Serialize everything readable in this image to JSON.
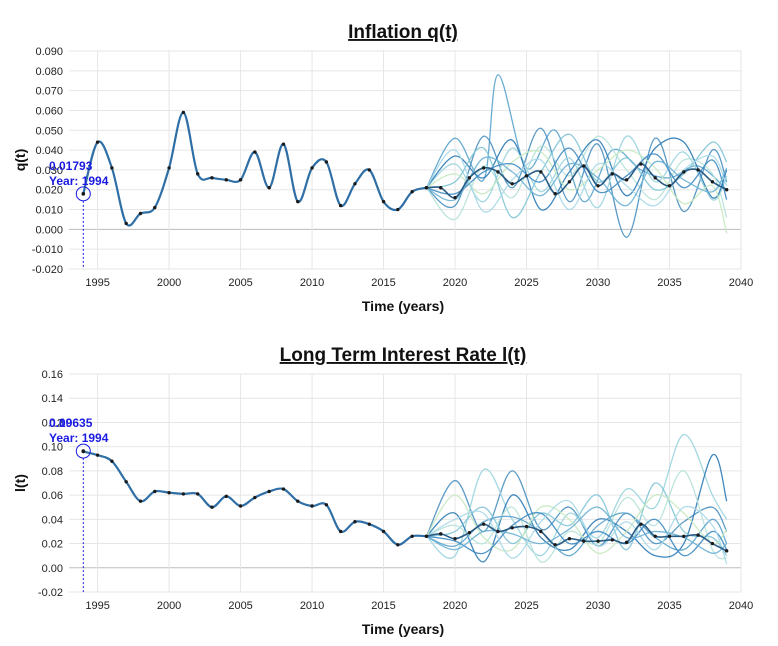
{
  "chart_data": [
    {
      "type": "line",
      "title": "Inflation q(t)",
      "xlabel": "Time (years)",
      "ylabel": "q(t)",
      "xlim": [
        1993,
        2040
      ],
      "ylim": [
        -0.02,
        0.09
      ],
      "grid": true,
      "x_ticks": [
        "1995",
        "2000",
        "2005",
        "2010",
        "2015",
        "2020",
        "2025",
        "2030",
        "2035",
        "2040"
      ],
      "y_ticks": [
        "0.090",
        "0.080",
        "0.070",
        "0.060",
        "0.050",
        "0.040",
        "0.030",
        "0.020",
        "0.010",
        "0.000",
        "-0.010",
        "-0.020"
      ],
      "annotation": {
        "value_label": "0.01793",
        "year_label": "Year: 1994",
        "x": 1994,
        "y": 0.01793
      },
      "history": {
        "x": [
          1994,
          1995,
          1996,
          1997,
          1998,
          1999,
          2000,
          2001,
          2002,
          2003,
          2004,
          2005,
          2006,
          2007,
          2008,
          2009,
          2010,
          2011,
          2012,
          2013,
          2014,
          2015,
          2016,
          2017,
          2018
        ],
        "y": [
          0.018,
          0.044,
          0.031,
          0.003,
          0.008,
          0.011,
          0.031,
          0.059,
          0.028,
          0.026,
          0.025,
          0.025,
          0.039,
          0.021,
          0.043,
          0.014,
          0.031,
          0.034,
          0.012,
          0.023,
          0.03,
          0.014,
          0.01,
          0.019,
          0.021
        ]
      },
      "forecast_mean": {
        "x": [
          2018,
          2019,
          2020,
          2021,
          2022,
          2023,
          2024,
          2025,
          2026,
          2027,
          2028,
          2029,
          2030,
          2031,
          2032,
          2033,
          2034,
          2035,
          2036,
          2037,
          2038,
          2039
        ],
        "y": [
          0.021,
          0.021,
          0.016,
          0.026,
          0.031,
          0.029,
          0.023,
          0.027,
          0.029,
          0.018,
          0.024,
          0.032,
          0.022,
          0.028,
          0.025,
          0.033,
          0.026,
          0.022,
          0.029,
          0.03,
          0.024,
          0.02
        ]
      },
      "scenarios": [
        {
          "x": [
            2018,
            2020,
            2022,
            2023,
            2025,
            2027,
            2029,
            2031,
            2033,
            2035,
            2037,
            2039
          ],
          "y": [
            0.021,
            0.046,
            0.025,
            0.078,
            0.031,
            0.05,
            0.014,
            0.04,
            0.03,
            0.026,
            0.032,
            0.02
          ],
          "color": "#5aa3cc"
        },
        {
          "x": [
            2018,
            2020,
            2022,
            2024,
            2026,
            2028,
            2030,
            2032,
            2034,
            2036,
            2038,
            2039
          ],
          "y": [
            0.021,
            0.012,
            0.047,
            0.021,
            0.051,
            0.014,
            0.043,
            -0.004,
            0.046,
            0.009,
            0.04,
            0.024
          ],
          "color": "#4a90c0"
        },
        {
          "x": [
            2018,
            2020,
            2022,
            2024,
            2026,
            2028,
            2030,
            2032,
            2034,
            2036,
            2038,
            2039
          ],
          "y": [
            0.021,
            0.033,
            0.014,
            0.041,
            0.019,
            0.036,
            0.011,
            0.047,
            0.024,
            0.039,
            0.015,
            0.027
          ],
          "color": "#9ad4de"
        },
        {
          "x": [
            2018,
            2020,
            2022,
            2024,
            2026,
            2028,
            2030,
            2032,
            2034,
            2036,
            2038,
            2039
          ],
          "y": [
            0.021,
            0.005,
            0.032,
            0.016,
            0.042,
            0.027,
            0.047,
            0.03,
            0.015,
            0.035,
            0.028,
            0.006
          ],
          "color": "#b6e2d9"
        },
        {
          "x": [
            2018,
            2020,
            2022,
            2024,
            2026,
            2028,
            2030,
            2032,
            2034,
            2036,
            2038,
            2039
          ],
          "y": [
            0.021,
            0.037,
            0.026,
            0.045,
            0.01,
            0.029,
            0.045,
            0.017,
            0.041,
            0.044,
            0.016,
            0.03
          ],
          "color": "#2c7bb6"
        },
        {
          "x": [
            2018,
            2020,
            2022,
            2024,
            2026,
            2028,
            2030,
            2032,
            2034,
            2036,
            2038,
            2039
          ],
          "y": [
            0.021,
            0.024,
            0.041,
            0.006,
            0.029,
            0.048,
            0.024,
            0.036,
            0.02,
            0.028,
            0.044,
            0.034
          ],
          "color": "#7fc4d6"
        },
        {
          "x": [
            2018,
            2020,
            2022,
            2024,
            2026,
            2028,
            2030,
            2032,
            2034,
            2036,
            2038,
            2039
          ],
          "y": [
            0.021,
            0.028,
            0.018,
            0.034,
            0.039,
            0.02,
            0.03,
            0.04,
            0.031,
            0.013,
            0.022,
            -0.002
          ],
          "color": "#c7e9c0"
        },
        {
          "x": [
            2018,
            2020,
            2022,
            2024,
            2026,
            2028,
            2030,
            2032,
            2034,
            2036,
            2038,
            2039
          ],
          "y": [
            0.021,
            0.018,
            0.029,
            0.033,
            0.024,
            0.041,
            0.019,
            0.027,
            0.038,
            0.021,
            0.035,
            0.015
          ],
          "color": "#3d8ac2"
        },
        {
          "x": [
            2018,
            2020,
            2022,
            2024,
            2026,
            2028,
            2030,
            2032,
            2034,
            2036,
            2038,
            2039
          ],
          "y": [
            0.021,
            0.04,
            0.009,
            0.025,
            0.035,
            0.01,
            0.033,
            0.022,
            0.012,
            0.03,
            0.037,
            0.022
          ],
          "color": "#a8d8e8"
        },
        {
          "x": [
            2018,
            2020,
            2022,
            2024,
            2026,
            2028,
            2030,
            2032,
            2034,
            2036,
            2038,
            2039
          ],
          "y": [
            0.021,
            0.015,
            0.036,
            0.029,
            0.017,
            0.033,
            0.026,
            0.012,
            0.034,
            0.025,
            0.019,
            0.031
          ],
          "color": "#6ab0d4"
        }
      ]
    },
    {
      "type": "line",
      "title": "Long Term Interest Rate l(t)",
      "xlabel": "Time (years)",
      "ylabel": "l(t)",
      "xlim": [
        1993,
        2040
      ],
      "ylim": [
        -0.02,
        0.16
      ],
      "grid": true,
      "x_ticks": [
        "1995",
        "2000",
        "2005",
        "2010",
        "2015",
        "2020",
        "2025",
        "2030",
        "2035",
        "2040"
      ],
      "y_ticks": [
        "0.16",
        "0.14",
        "0.12",
        "0.10",
        "0.08",
        "0.06",
        "0.04",
        "0.02",
        "0.00",
        "-0.02"
      ],
      "annotation": {
        "value_label": "0.09635",
        "year_label": "Year: 1994",
        "overlap_label": "0.10",
        "x": 1994,
        "y": 0.09635
      },
      "history": {
        "x": [
          1994,
          1995,
          1996,
          1997,
          1998,
          1999,
          2000,
          2001,
          2002,
          2003,
          2004,
          2005,
          2006,
          2007,
          2008,
          2009,
          2010,
          2011,
          2012,
          2013,
          2014,
          2015,
          2016,
          2017,
          2018
        ],
        "y": [
          0.096,
          0.093,
          0.088,
          0.071,
          0.055,
          0.063,
          0.062,
          0.061,
          0.061,
          0.05,
          0.059,
          0.051,
          0.058,
          0.063,
          0.065,
          0.055,
          0.051,
          0.052,
          0.03,
          0.038,
          0.036,
          0.03,
          0.019,
          0.026,
          0.026
        ]
      },
      "forecast_mean": {
        "x": [
          2018,
          2019,
          2020,
          2021,
          2022,
          2023,
          2024,
          2025,
          2026,
          2027,
          2028,
          2029,
          2030,
          2031,
          2032,
          2033,
          2034,
          2035,
          2036,
          2037,
          2038,
          2039
        ],
        "y": [
          0.026,
          0.028,
          0.024,
          0.029,
          0.036,
          0.03,
          0.033,
          0.034,
          0.03,
          0.019,
          0.024,
          0.022,
          0.022,
          0.023,
          0.021,
          0.036,
          0.026,
          0.026,
          0.026,
          0.027,
          0.02,
          0.014
        ]
      },
      "scenarios": [
        {
          "x": [
            2018,
            2020,
            2022,
            2024,
            2026,
            2028,
            2030,
            2032,
            2034,
            2036,
            2038,
            2039
          ],
          "y": [
            0.026,
            0.072,
            0.03,
            0.08,
            0.032,
            0.05,
            0.018,
            0.045,
            0.02,
            0.038,
            0.05,
            0.03
          ],
          "color": "#4a90c0"
        },
        {
          "x": [
            2018,
            2020,
            2022,
            2024,
            2026,
            2028,
            2030,
            2032,
            2034,
            2036,
            2038,
            2039
          ],
          "y": [
            0.026,
            0.01,
            0.081,
            0.04,
            0.01,
            0.045,
            0.025,
            0.065,
            0.05,
            0.11,
            0.06,
            0.04
          ],
          "color": "#9ad4de"
        },
        {
          "x": [
            2018,
            2020,
            2022,
            2024,
            2026,
            2028,
            2030,
            2032,
            2034,
            2036,
            2038,
            2039
          ],
          "y": [
            0.026,
            0.045,
            0.005,
            0.06,
            0.025,
            0.015,
            0.04,
            0.03,
            0.01,
            0.02,
            0.093,
            0.055
          ],
          "color": "#2c7bb6"
        },
        {
          "x": [
            2018,
            2020,
            2022,
            2024,
            2026,
            2028,
            2030,
            2032,
            2034,
            2036,
            2038,
            2039
          ],
          "y": [
            0.026,
            0.03,
            0.05,
            0.02,
            0.045,
            0.035,
            0.06,
            0.015,
            0.07,
            0.03,
            0.025,
            0.01
          ],
          "color": "#7fc4d6"
        },
        {
          "x": [
            2018,
            2020,
            2022,
            2024,
            2026,
            2028,
            2030,
            2032,
            2034,
            2036,
            2038,
            2039
          ],
          "y": [
            0.026,
            0.035,
            0.02,
            0.05,
            0.005,
            0.03,
            0.02,
            0.058,
            0.035,
            0.08,
            0.015,
            0.008
          ],
          "color": "#b6e2d9"
        },
        {
          "x": [
            2018,
            2020,
            2022,
            2024,
            2026,
            2028,
            2030,
            2032,
            2034,
            2036,
            2038,
            2039
          ],
          "y": [
            0.026,
            0.018,
            0.038,
            0.042,
            0.03,
            0.01,
            0.035,
            0.045,
            0.025,
            0.015,
            0.04,
            0.02
          ],
          "color": "#5aa3cc"
        },
        {
          "x": [
            2018,
            2020,
            2022,
            2024,
            2026,
            2028,
            2030,
            2032,
            2034,
            2036,
            2038,
            2039
          ],
          "y": [
            0.026,
            0.06,
            0.025,
            0.015,
            0.05,
            0.04,
            0.012,
            0.03,
            0.06,
            0.045,
            0.02,
            0.032
          ],
          "color": "#c7e9c0"
        },
        {
          "x": [
            2018,
            2020,
            2022,
            2024,
            2026,
            2028,
            2030,
            2032,
            2034,
            2036,
            2038,
            2039
          ],
          "y": [
            0.026,
            0.022,
            0.012,
            0.035,
            0.045,
            0.02,
            0.03,
            0.02,
            0.04,
            0.01,
            0.03,
            0.015
          ],
          "color": "#3d8ac2"
        },
        {
          "x": [
            2018,
            2020,
            2022,
            2024,
            2026,
            2028,
            2030,
            2032,
            2034,
            2036,
            2038,
            2039
          ],
          "y": [
            0.026,
            0.04,
            0.045,
            0.008,
            0.038,
            0.055,
            0.018,
            0.038,
            0.015,
            0.05,
            0.035,
            0.003
          ],
          "color": "#a8d8e8"
        },
        {
          "x": [
            2018,
            2020,
            2022,
            2024,
            2026,
            2028,
            2030,
            2032,
            2034,
            2036,
            2038,
            2039
          ],
          "y": [
            0.026,
            0.015,
            0.03,
            0.028,
            0.02,
            0.032,
            0.05,
            0.025,
            0.03,
            0.025,
            0.012,
            0.02
          ],
          "color": "#6ab0d4"
        }
      ]
    }
  ],
  "colors": {
    "history_line": "#2f6fa6",
    "mean_line": "#2a5c85",
    "marker": "#1a1a1a",
    "annotation": "#1a1ae0",
    "grid": "#e6e6e6",
    "zero_line": "#bdbdbd"
  }
}
